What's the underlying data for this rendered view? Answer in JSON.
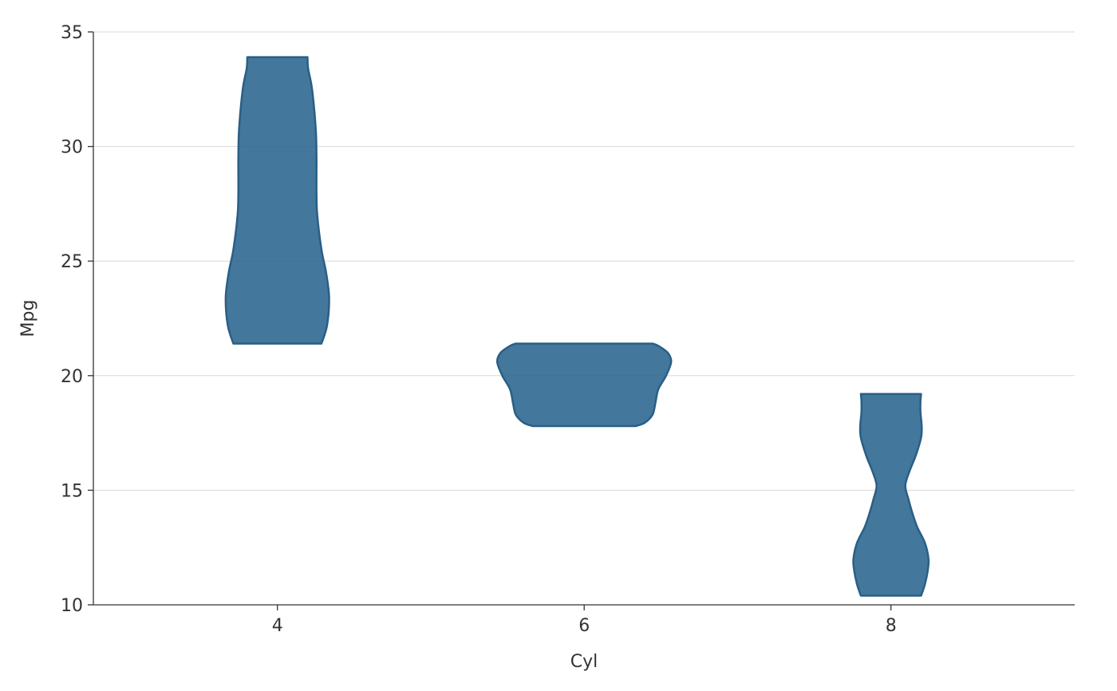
{
  "chart_data": {
    "type": "violin",
    "title": "",
    "xlabel": "Cyl",
    "ylabel": "Mpg",
    "categories": [
      "4",
      "6",
      "8"
    ],
    "ylim": [
      10,
      35
    ],
    "yticks": [
      10,
      15,
      20,
      25,
      30,
      35
    ],
    "grid": true,
    "colors": {
      "fill": "#2f6890",
      "stroke": "#2a5f86",
      "fill_opacity": 0.9
    },
    "violins": [
      {
        "category": "4",
        "min": 21.4,
        "max": 33.9,
        "profile": [
          [
            21.4,
            0.46
          ],
          [
            22.2,
            0.52
          ],
          [
            23.4,
            0.54
          ],
          [
            24.5,
            0.51
          ],
          [
            25.5,
            0.46
          ],
          [
            27.0,
            0.41
          ],
          [
            28.0,
            0.4
          ],
          [
            29.5,
            0.4
          ],
          [
            30.8,
            0.39
          ],
          [
            32.5,
            0.34
          ],
          [
            33.4,
            0.28
          ],
          [
            33.9,
            0.27
          ]
        ]
      },
      {
        "category": "6",
        "min": 17.8,
        "max": 21.4,
        "profile": [
          [
            17.8,
            0.54
          ],
          [
            17.95,
            0.62
          ],
          [
            18.3,
            0.68
          ],
          [
            18.8,
            0.7
          ],
          [
            19.4,
            0.72
          ],
          [
            20.0,
            0.77
          ],
          [
            20.6,
            0.8
          ],
          [
            21.0,
            0.78
          ],
          [
            21.3,
            0.72
          ],
          [
            21.4,
            0.68
          ]
        ]
      },
      {
        "category": "8",
        "min": 10.4,
        "max": 19.2,
        "profile": [
          [
            10.4,
            0.27
          ],
          [
            10.9,
            0.33
          ],
          [
            11.5,
            0.37
          ],
          [
            12.0,
            0.38
          ],
          [
            12.7,
            0.33
          ],
          [
            13.4,
            0.2
          ],
          [
            14.0,
            0.1
          ],
          [
            14.6,
            0.0
          ],
          [
            15.2,
            -0.1
          ],
          [
            15.8,
            0.02
          ],
          [
            16.5,
            0.17
          ],
          [
            17.3,
            0.27
          ],
          [
            17.8,
            0.28
          ],
          [
            18.4,
            0.26
          ],
          [
            18.9,
            0.26
          ],
          [
            19.2,
            0.27
          ]
        ]
      }
    ]
  }
}
